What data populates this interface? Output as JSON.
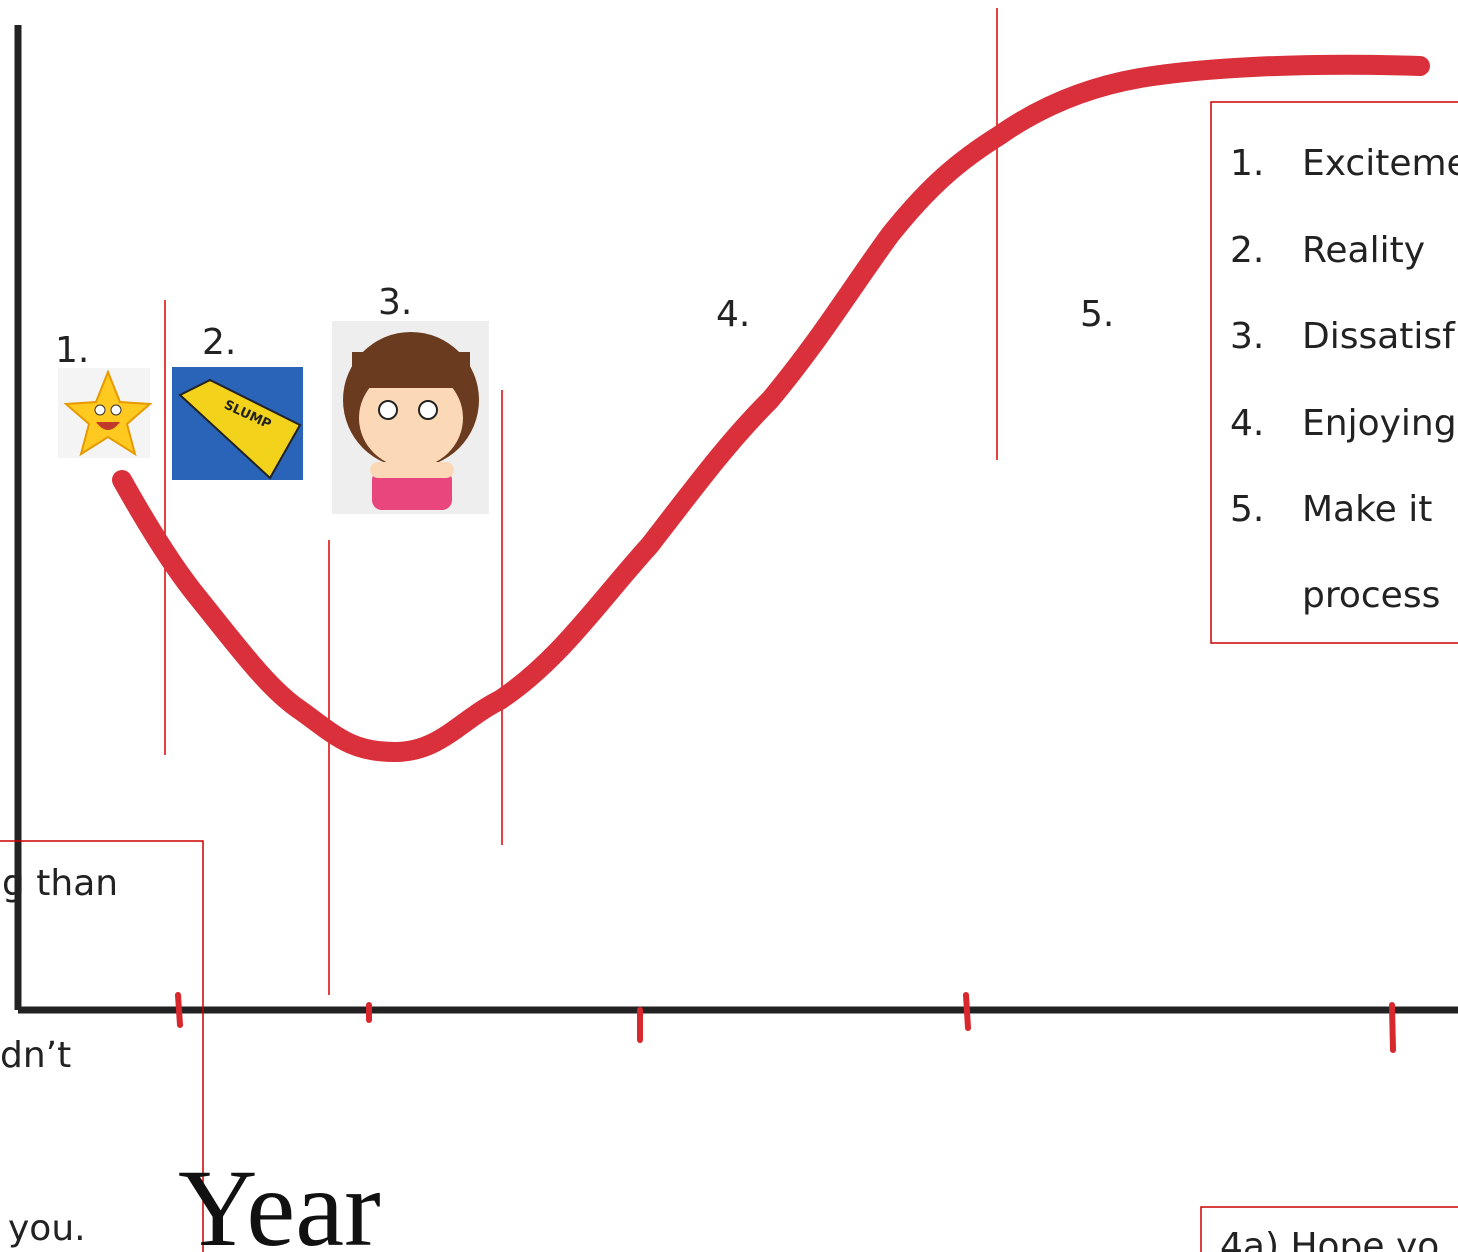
{
  "stage_labels": [
    "1.",
    "2.",
    "3.",
    "4.",
    "5."
  ],
  "legend_box": {
    "items": [
      {
        "number": "1.",
        "text": "Exciteme"
      },
      {
        "number": "2.",
        "text": "Reality"
      },
      {
        "number": "3.",
        "text": "Dissatisf"
      },
      {
        "number": "4.",
        "text": "Enjoying"
      },
      {
        "number": "5.",
        "text": "Make it"
      }
    ],
    "continuation": "process"
  },
  "left_box": {
    "lines": [
      "g than",
      "dn’t",
      "you."
    ]
  },
  "axis_label": "Year",
  "bottom_box": {
    "text": "4a) Hope yo"
  }
}
